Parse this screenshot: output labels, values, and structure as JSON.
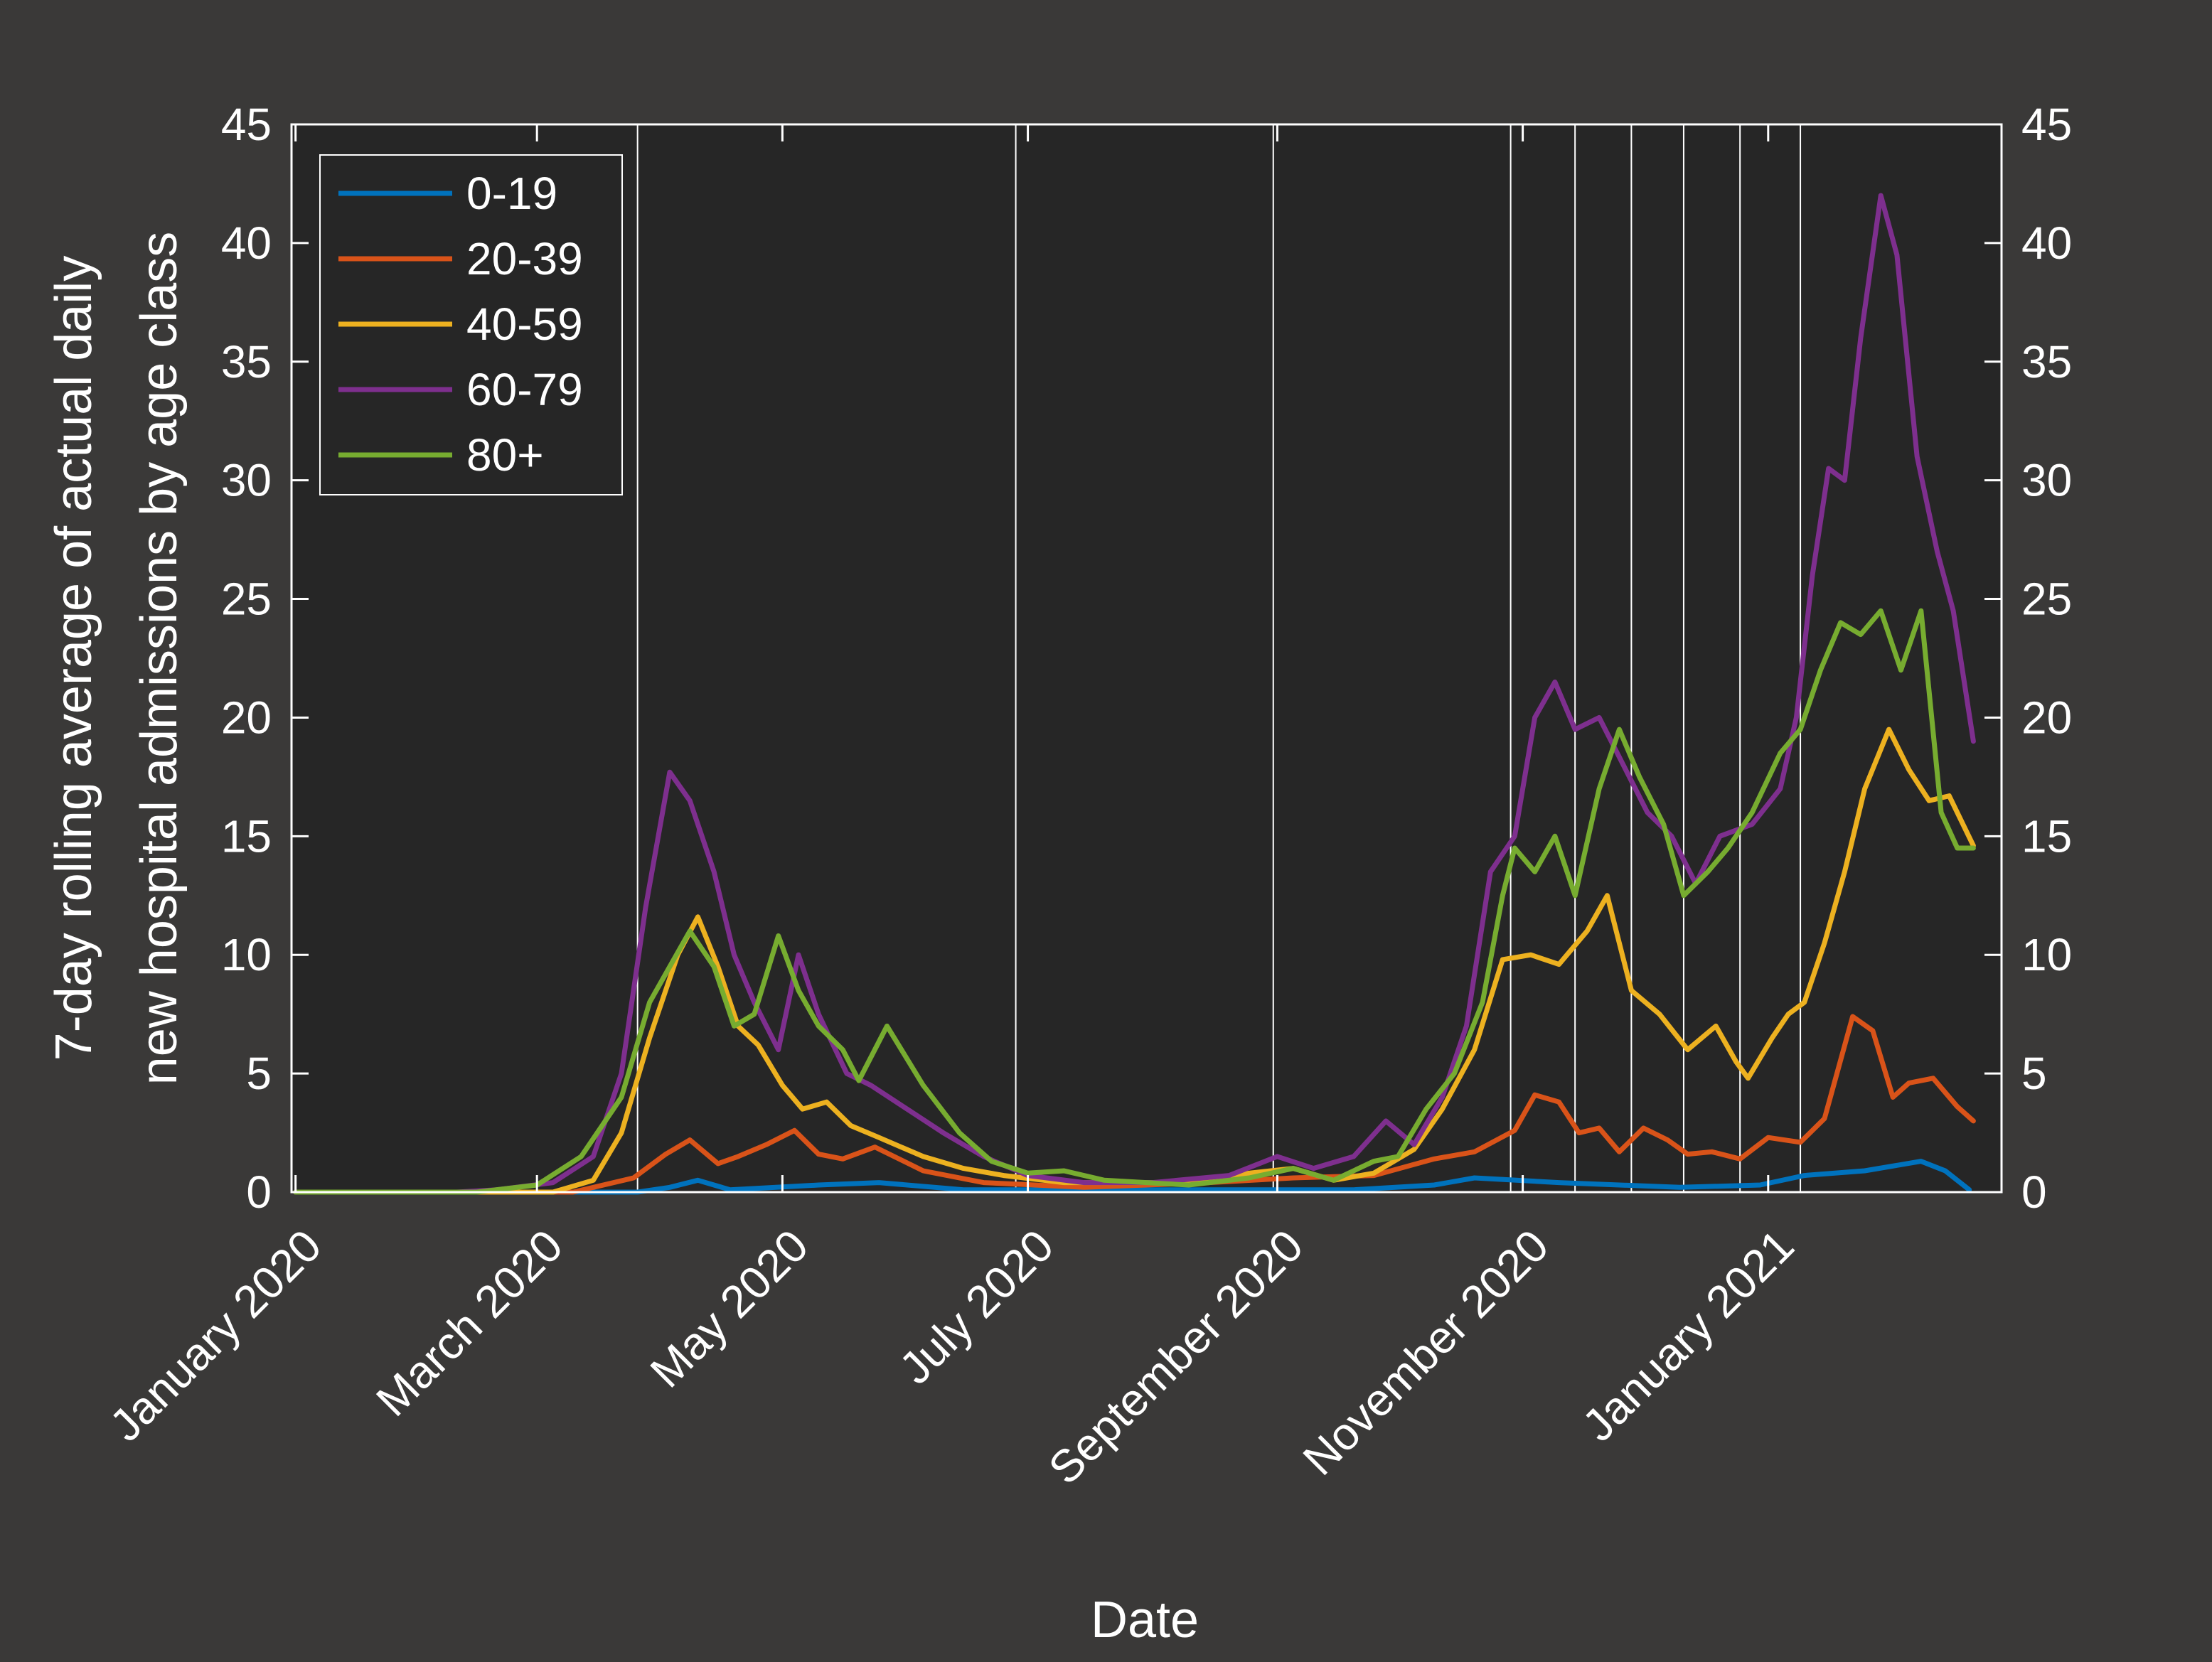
{
  "chart_data": {
    "type": "line",
    "xlabel": "Date",
    "ylabel_lines": [
      "7-day rolling average of actual daily",
      "new hospital admissions by age class"
    ],
    "ylim": [
      0,
      45
    ],
    "yticks": [
      0,
      5,
      10,
      15,
      20,
      25,
      30,
      35,
      40,
      45
    ],
    "xlim": [
      "2019-12-31",
      "2021-02-28"
    ],
    "xticks": [
      {
        "date": "2020-01-01",
        "label": "January 2020"
      },
      {
        "date": "2020-03-01",
        "label": "March 2020"
      },
      {
        "date": "2020-05-01",
        "label": "May 2020"
      },
      {
        "date": "2020-07-01",
        "label": "July 2020"
      },
      {
        "date": "2020-09-01",
        "label": "September 2020"
      },
      {
        "date": "2020-11-01",
        "label": "November 2020"
      },
      {
        "date": "2021-01-01",
        "label": "January 2021"
      }
    ],
    "vertical_lines": [
      "2020-03-26",
      "2020-06-28",
      "2020-08-31",
      "2020-10-29",
      "2020-11-14",
      "2020-11-28",
      "2020-12-11",
      "2020-12-25",
      "2021-01-09"
    ],
    "legend_position": "top-left",
    "grid": false,
    "right_axis_mirror": true,
    "series": [
      {
        "name": "0-19",
        "color": "#0072bd",
        "points": [
          [
            "2020-01-01",
            0
          ],
          [
            "2020-03-26",
            0
          ],
          [
            "2020-04-03",
            0.2
          ],
          [
            "2020-04-10",
            0.5
          ],
          [
            "2020-04-18",
            0.1
          ],
          [
            "2020-05-10",
            0.3
          ],
          [
            "2020-05-25",
            0.4
          ],
          [
            "2020-06-15",
            0.1
          ],
          [
            "2020-08-30",
            0.1
          ],
          [
            "2020-09-20",
            0.1
          ],
          [
            "2020-10-10",
            0.3
          ],
          [
            "2020-10-20",
            0.6
          ],
          [
            "2020-11-10",
            0.4
          ],
          [
            "2020-12-10",
            0.2
          ],
          [
            "2020-12-30",
            0.3
          ],
          [
            "2021-01-10",
            0.7
          ],
          [
            "2021-01-25",
            0.9
          ],
          [
            "2021-02-08",
            1.3
          ],
          [
            "2021-02-14",
            0.9
          ],
          [
            "2021-02-20",
            0.1
          ]
        ]
      },
      {
        "name": "20-39",
        "color": "#d95319",
        "points": [
          [
            "2020-01-01",
            0
          ],
          [
            "2020-03-10",
            0
          ],
          [
            "2020-03-25",
            0.6
          ],
          [
            "2020-04-02",
            1.6
          ],
          [
            "2020-04-08",
            2.2
          ],
          [
            "2020-04-15",
            1.2
          ],
          [
            "2020-04-20",
            1.5
          ],
          [
            "2020-04-27",
            2.0
          ],
          [
            "2020-05-04",
            2.6
          ],
          [
            "2020-05-10",
            1.6
          ],
          [
            "2020-05-16",
            1.4
          ],
          [
            "2020-05-24",
            1.9
          ],
          [
            "2020-06-05",
            0.9
          ],
          [
            "2020-06-20",
            0.4
          ],
          [
            "2020-07-15",
            0.2
          ],
          [
            "2020-08-15",
            0.4
          ],
          [
            "2020-09-05",
            0.6
          ],
          [
            "2020-09-25",
            0.7
          ],
          [
            "2020-10-10",
            1.4
          ],
          [
            "2020-10-20",
            1.7
          ],
          [
            "2020-10-30",
            2.6
          ],
          [
            "2020-11-04",
            4.1
          ],
          [
            "2020-11-10",
            3.8
          ],
          [
            "2020-11-15",
            2.5
          ],
          [
            "2020-11-20",
            2.7
          ],
          [
            "2020-11-25",
            1.7
          ],
          [
            "2020-12-01",
            2.7
          ],
          [
            "2020-12-07",
            2.2
          ],
          [
            "2020-12-12",
            1.6
          ],
          [
            "2020-12-18",
            1.7
          ],
          [
            "2020-12-25",
            1.4
          ],
          [
            "2021-01-01",
            2.3
          ],
          [
            "2021-01-09",
            2.1
          ],
          [
            "2021-01-15",
            3.1
          ],
          [
            "2021-01-22",
            7.4
          ],
          [
            "2021-01-27",
            6.8
          ],
          [
            "2021-02-01",
            4.0
          ],
          [
            "2021-02-05",
            4.6
          ],
          [
            "2021-02-11",
            4.8
          ],
          [
            "2021-02-17",
            3.6
          ],
          [
            "2021-02-21",
            3.0
          ]
        ]
      },
      {
        "name": "40-59",
        "color": "#edb120",
        "points": [
          [
            "2020-01-01",
            0
          ],
          [
            "2020-03-05",
            0
          ],
          [
            "2020-03-15",
            0.5
          ],
          [
            "2020-03-22",
            2.5
          ],
          [
            "2020-03-29",
            6.5
          ],
          [
            "2020-04-05",
            10.0
          ],
          [
            "2020-04-10",
            11.6
          ],
          [
            "2020-04-15",
            9.5
          ],
          [
            "2020-04-20",
            7.0
          ],
          [
            "2020-04-25",
            6.2
          ],
          [
            "2020-05-01",
            4.5
          ],
          [
            "2020-05-06",
            3.5
          ],
          [
            "2020-05-12",
            3.8
          ],
          [
            "2020-05-18",
            2.8
          ],
          [
            "2020-05-25",
            2.3
          ],
          [
            "2020-06-05",
            1.5
          ],
          [
            "2020-06-15",
            1.0
          ],
          [
            "2020-06-25",
            0.7
          ],
          [
            "2020-07-10",
            0.4
          ],
          [
            "2020-08-10",
            0.4
          ],
          [
            "2020-08-25",
            0.8
          ],
          [
            "2020-09-05",
            1.0
          ],
          [
            "2020-09-15",
            0.5
          ],
          [
            "2020-09-25",
            0.8
          ],
          [
            "2020-10-05",
            1.8
          ],
          [
            "2020-10-12",
            3.5
          ],
          [
            "2020-10-20",
            6.0
          ],
          [
            "2020-10-27",
            9.8
          ],
          [
            "2020-11-03",
            10.0
          ],
          [
            "2020-11-10",
            9.6
          ],
          [
            "2020-11-17",
            11.0
          ],
          [
            "2020-11-22",
            12.5
          ],
          [
            "2020-11-28",
            8.5
          ],
          [
            "2020-12-05",
            7.5
          ],
          [
            "2020-12-12",
            6.0
          ],
          [
            "2020-12-19",
            7.0
          ],
          [
            "2020-12-24",
            5.5
          ],
          [
            "2020-12-27",
            4.8
          ],
          [
            "2021-01-02",
            6.5
          ],
          [
            "2021-01-06",
            7.5
          ],
          [
            "2021-01-10",
            8.0
          ],
          [
            "2021-01-15",
            10.5
          ],
          [
            "2021-01-20",
            13.5
          ],
          [
            "2021-01-25",
            17.0
          ],
          [
            "2021-01-31",
            19.5
          ],
          [
            "2021-02-05",
            17.8
          ],
          [
            "2021-02-10",
            16.5
          ],
          [
            "2021-02-15",
            16.7
          ],
          [
            "2021-02-21",
            14.6
          ]
        ]
      },
      {
        "name": "60-79",
        "color": "#7e2f8e",
        "points": [
          [
            "2020-01-01",
            0
          ],
          [
            "2020-02-10",
            0
          ],
          [
            "2020-02-20",
            0.1
          ],
          [
            "2020-03-05",
            0.4
          ],
          [
            "2020-03-15",
            1.5
          ],
          [
            "2020-03-22",
            5.0
          ],
          [
            "2020-03-28",
            12.0
          ],
          [
            "2020-04-03",
            17.7
          ],
          [
            "2020-04-08",
            16.5
          ],
          [
            "2020-04-14",
            13.5
          ],
          [
            "2020-04-19",
            10.0
          ],
          [
            "2020-04-24",
            8.0
          ],
          [
            "2020-04-30",
            6.0
          ],
          [
            "2020-05-05",
            10.0
          ],
          [
            "2020-05-10",
            7.5
          ],
          [
            "2020-05-17",
            5.0
          ],
          [
            "2020-05-23",
            4.5
          ],
          [
            "2020-06-01",
            3.5
          ],
          [
            "2020-06-10",
            2.5
          ],
          [
            "2020-06-20",
            1.5
          ],
          [
            "2020-07-01",
            0.7
          ],
          [
            "2020-07-15",
            0.4
          ],
          [
            "2020-08-01",
            0.4
          ],
          [
            "2020-08-20",
            0.7
          ],
          [
            "2020-09-01",
            1.5
          ],
          [
            "2020-09-10",
            1.0
          ],
          [
            "2020-09-20",
            1.5
          ],
          [
            "2020-09-28",
            3.0
          ],
          [
            "2020-10-05",
            2.0
          ],
          [
            "2020-10-12",
            4.0
          ],
          [
            "2020-10-18",
            7.0
          ],
          [
            "2020-10-24",
            13.5
          ],
          [
            "2020-10-30",
            15.0
          ],
          [
            "2020-11-04",
            20.0
          ],
          [
            "2020-11-09",
            21.5
          ],
          [
            "2020-11-14",
            19.5
          ],
          [
            "2020-11-20",
            20.0
          ],
          [
            "2020-11-26",
            18.0
          ],
          [
            "2020-12-02",
            16.0
          ],
          [
            "2020-12-08",
            15.0
          ],
          [
            "2020-12-14",
            13.0
          ],
          [
            "2020-12-20",
            15.0
          ],
          [
            "2020-12-28",
            15.5
          ],
          [
            "2021-01-04",
            17.0
          ],
          [
            "2021-01-08",
            20.0
          ],
          [
            "2021-01-12",
            26.0
          ],
          [
            "2021-01-16",
            30.5
          ],
          [
            "2021-01-20",
            30.0
          ],
          [
            "2021-01-24",
            36.0
          ],
          [
            "2021-01-29",
            42.0
          ],
          [
            "2021-02-02",
            39.5
          ],
          [
            "2021-02-07",
            31.0
          ],
          [
            "2021-02-12",
            27.0
          ],
          [
            "2021-02-16",
            24.5
          ],
          [
            "2021-02-21",
            19.0
          ]
        ]
      },
      {
        "name": "80+",
        "color": "#77ac30",
        "points": [
          [
            "2020-01-01",
            0
          ],
          [
            "2020-02-15",
            0
          ],
          [
            "2020-03-01",
            0.3
          ],
          [
            "2020-03-12",
            1.5
          ],
          [
            "2020-03-22",
            4.0
          ],
          [
            "2020-03-29",
            8.0
          ],
          [
            "2020-04-03",
            9.5
          ],
          [
            "2020-04-08",
            11.0
          ],
          [
            "2020-04-14",
            9.5
          ],
          [
            "2020-04-19",
            7.0
          ],
          [
            "2020-04-24",
            7.5
          ],
          [
            "2020-04-30",
            10.8
          ],
          [
            "2020-05-05",
            8.5
          ],
          [
            "2020-05-10",
            7.0
          ],
          [
            "2020-05-16",
            6.0
          ],
          [
            "2020-05-20",
            4.7
          ],
          [
            "2020-05-27",
            7.0
          ],
          [
            "2020-06-05",
            4.5
          ],
          [
            "2020-06-14",
            2.5
          ],
          [
            "2020-06-22",
            1.3
          ],
          [
            "2020-07-01",
            0.8
          ],
          [
            "2020-07-10",
            0.9
          ],
          [
            "2020-07-20",
            0.5
          ],
          [
            "2020-08-10",
            0.3
          ],
          [
            "2020-08-25",
            0.6
          ],
          [
            "2020-09-05",
            1.0
          ],
          [
            "2020-09-15",
            0.5
          ],
          [
            "2020-09-25",
            1.3
          ],
          [
            "2020-10-01",
            1.5
          ],
          [
            "2020-10-08",
            3.5
          ],
          [
            "2020-10-15",
            5.0
          ],
          [
            "2020-10-22",
            8.0
          ],
          [
            "2020-10-27",
            12.5
          ],
          [
            "2020-10-30",
            14.5
          ],
          [
            "2020-11-04",
            13.5
          ],
          [
            "2020-11-09",
            15.0
          ],
          [
            "2020-11-14",
            12.5
          ],
          [
            "2020-11-20",
            17.0
          ],
          [
            "2020-11-25",
            19.5
          ],
          [
            "2020-11-30",
            17.5
          ],
          [
            "2020-12-06",
            15.5
          ],
          [
            "2020-12-11",
            12.5
          ],
          [
            "2020-12-17",
            13.5
          ],
          [
            "2020-12-22",
            14.5
          ],
          [
            "2020-12-28",
            16.0
          ],
          [
            "2021-01-04",
            18.5
          ],
          [
            "2021-01-09",
            19.5
          ],
          [
            "2021-01-14",
            22.0
          ],
          [
            "2021-01-19",
            24.0
          ],
          [
            "2021-01-24",
            23.5
          ],
          [
            "2021-01-29",
            24.5
          ],
          [
            "2021-02-03",
            22.0
          ],
          [
            "2021-02-08",
            24.5
          ],
          [
            "2021-02-13",
            16.0
          ],
          [
            "2021-02-17",
            14.5
          ],
          [
            "2021-02-21",
            14.5
          ]
        ]
      }
    ]
  }
}
